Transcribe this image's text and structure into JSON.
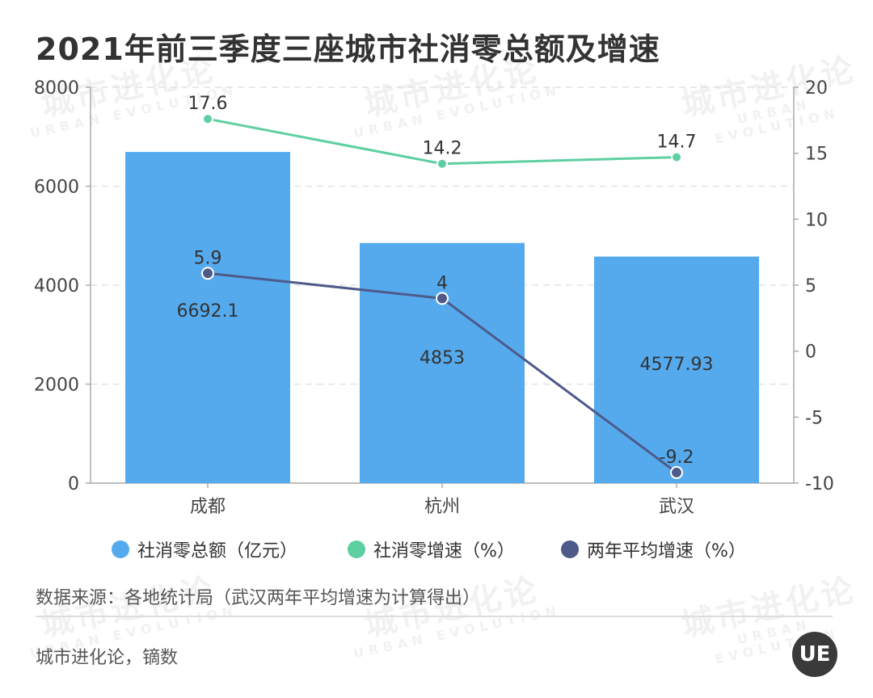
{
  "title": "2021年前三季度三座城市社消零总额及增速",
  "chart_data": {
    "type": "bar",
    "categories": [
      "成都",
      "杭州",
      "武汉"
    ],
    "series": [
      {
        "name": "社消零总额（亿元）",
        "type": "bar",
        "axis": "left",
        "color": "#55aaee",
        "values": [
          6692.1,
          4853,
          4577.93
        ]
      },
      {
        "name": "社消零增速（%）",
        "type": "line",
        "axis": "right",
        "color": "#5ecfa0",
        "values": [
          17.6,
          14.2,
          14.7
        ]
      },
      {
        "name": "两年平均增速（%）",
        "type": "line",
        "axis": "right",
        "color": "#4e5a8a",
        "values": [
          5.9,
          4,
          -9.2
        ]
      }
    ],
    "left_axis": {
      "ylim": [
        0,
        8000
      ],
      "ticks": [
        0,
        2000,
        4000,
        6000,
        8000
      ]
    },
    "right_axis": {
      "ylim": [
        -10,
        20
      ],
      "ticks": [
        -10,
        -5,
        0,
        5,
        10,
        15,
        20
      ]
    },
    "bar_labels": [
      "6692.1",
      "4853",
      "4577.93"
    ],
    "growth_labels": [
      "17.6",
      "14.2",
      "14.7"
    ],
    "avg_labels": [
      "5.9",
      "4",
      "-9.2"
    ],
    "grid": true,
    "legend_position": "bottom"
  },
  "legend": [
    {
      "label": "社消零总额（亿元）",
      "color": "#55aaee"
    },
    {
      "label": "社消零增速（%）",
      "color": "#5ecfa0"
    },
    {
      "label": "两年平均增速（%）",
      "color": "#4e5a8a"
    }
  ],
  "source": "数据来源：各地统计局（武汉两年平均增速为计算得出）",
  "credit": "城市进化论，镝数",
  "logo_text": "UE",
  "watermark": {
    "cn": "城市进化论",
    "en": "URBAN EVOLUTION"
  }
}
